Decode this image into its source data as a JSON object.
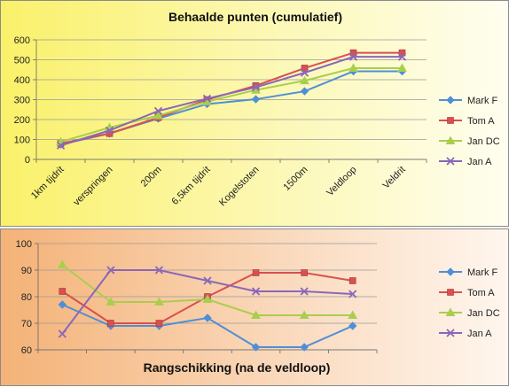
{
  "chart_data": [
    {
      "type": "line",
      "title": "Behaalde punten (cumulatief)",
      "xlabel": "",
      "ylabel": "",
      "categories": [
        "1km tijdrit",
        "verspringen",
        "200m",
        "6,5km tijdrit",
        "Kogelstoten",
        "1500m",
        "Veldloop",
        "Veldrit"
      ],
      "ylim": [
        0,
        600
      ],
      "yticks": [
        0,
        100,
        200,
        300,
        400,
        500,
        600
      ],
      "grid": true,
      "legend": "right",
      "series": [
        {
          "name": "Mark F",
          "color": "#4f8fd6",
          "marker": "diamond",
          "values": [
            75,
            130,
            205,
            278,
            302,
            342,
            442,
            442
          ]
        },
        {
          "name": "Tom A",
          "color": "#d9504f",
          "marker": "square",
          "values": [
            80,
            130,
            210,
            300,
            370,
            458,
            535,
            535
          ]
        },
        {
          "name": "Jan DC",
          "color": "#a9ce4e",
          "marker": "triangle",
          "values": [
            88,
            160,
            220,
            290,
            348,
            395,
            458,
            458
          ]
        },
        {
          "name": "Jan A",
          "color": "#8a67b8",
          "marker": "x",
          "values": [
            70,
            145,
            243,
            305,
            362,
            435,
            515,
            515
          ]
        }
      ]
    },
    {
      "type": "line",
      "title": "Rangschikking (na de veldloop)",
      "xlabel": "",
      "ylabel": "",
      "categories": [
        "",
        "",
        "",
        "",
        "",
        "",
        ""
      ],
      "ylim": [
        60,
        100
      ],
      "yticks": [
        60,
        70,
        80,
        90,
        100
      ],
      "grid": true,
      "legend": "right",
      "series": [
        {
          "name": "Mark F",
          "color": "#4f8fd6",
          "marker": "diamond",
          "values": [
            77,
            69,
            69,
            72,
            61,
            61,
            69
          ]
        },
        {
          "name": "Tom A",
          "color": "#d9504f",
          "marker": "square",
          "values": [
            82,
            70,
            70,
            80,
            89,
            89,
            86
          ]
        },
        {
          "name": "Jan DC",
          "color": "#a9ce4e",
          "marker": "triangle",
          "values": [
            92,
            78,
            78,
            79,
            73,
            73,
            73
          ]
        },
        {
          "name": "Jan A",
          "color": "#8a67b8",
          "marker": "x",
          "values": [
            66,
            90,
            90,
            86,
            82,
            82,
            81
          ]
        }
      ]
    }
  ]
}
